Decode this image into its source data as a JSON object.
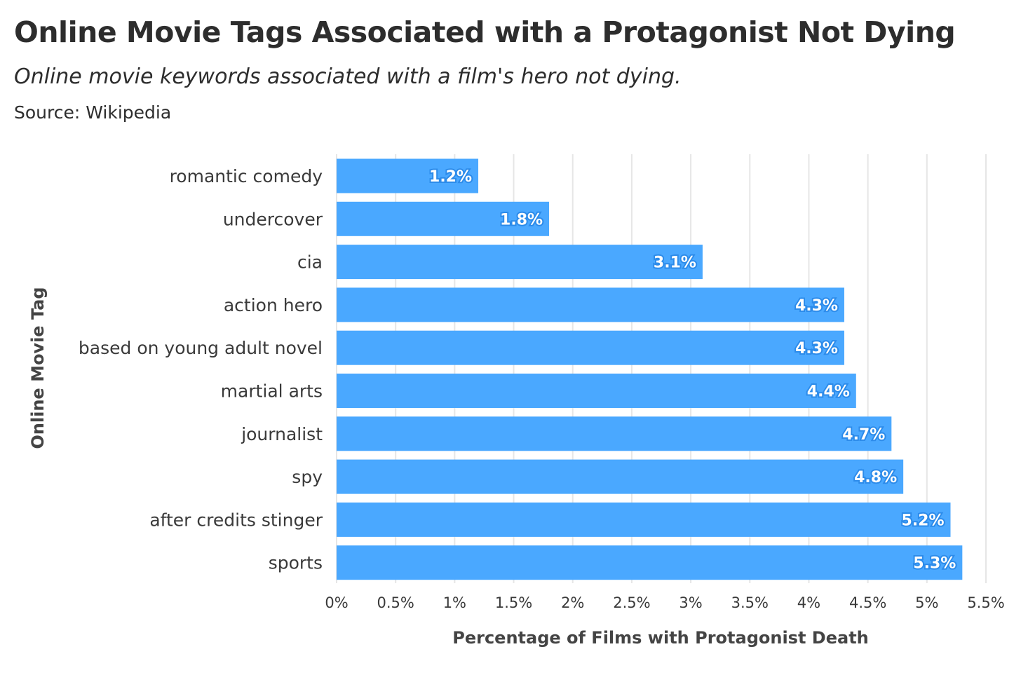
{
  "header": {
    "title": "Online Movie Tags Associated with a Protagonist Not Dying",
    "subtitle": "Online movie keywords associated with a film's hero not dying.",
    "source": "Source: Wikipedia"
  },
  "colors": {
    "bar": "#4aa8ff",
    "bar_label_outline": "#2c8bea",
    "grid": "#e6e6e6"
  },
  "chart_data": {
    "type": "bar",
    "orientation": "horizontal",
    "title": "Online Movie Tags Associated with a Protagonist Not Dying",
    "xlabel": "Percentage of Films with Protagonist Death",
    "ylabel": "Online Movie Tag",
    "categories": [
      "romantic comedy",
      "undercover",
      "cia",
      "action hero",
      "based on young adult novel",
      "martial arts",
      "journalist",
      "spy",
      "after credits stinger",
      "sports"
    ],
    "values": [
      1.2,
      1.8,
      3.1,
      4.3,
      4.3,
      4.4,
      4.7,
      4.8,
      5.2,
      5.3
    ],
    "value_labels": [
      "1.2%",
      "1.8%",
      "3.1%",
      "4.3%",
      "4.3%",
      "4.4%",
      "4.7%",
      "4.8%",
      "5.2%",
      "5.3%"
    ],
    "xlim": [
      0,
      5.5
    ],
    "xticks": [
      0,
      0.5,
      1,
      1.5,
      2,
      2.5,
      3,
      3.5,
      4,
      4.5,
      5,
      5.5
    ],
    "xtick_labels": [
      "0%",
      "0.5%",
      "1%",
      "1.5%",
      "2%",
      "2.5%",
      "3%",
      "3.5%",
      "4%",
      "4.5%",
      "5%",
      "5.5%"
    ],
    "grid": "vertical",
    "legend": "none"
  }
}
